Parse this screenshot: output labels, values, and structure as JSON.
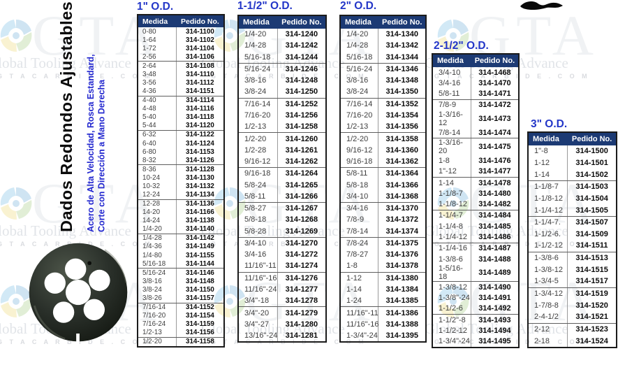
{
  "page": {
    "product_title": "Dados Redondos Ajustables",
    "subtitle_line1": "Acero de Alta Velocidad, Rosca Estandard,",
    "subtitle_line2": "Corte con Dirección a Mano Derecha"
  },
  "watermark": {
    "brand_acronym": "GTA",
    "brand_name": "Global Tooling Advance",
    "brand_url": "G T A C A R B I D E . C O M"
  },
  "colors": {
    "title_blue": "#2336c8",
    "header_navy": "#1c3a74",
    "subtitle_blue": "#2328cf"
  },
  "columns": {
    "size": "Medida",
    "order": "Pedido No."
  },
  "tables": [
    {
      "title": "1\" O.D.",
      "group_size": 4,
      "rows": [
        [
          "0-80",
          "314-1100"
        ],
        [
          "1-64",
          "314-1102"
        ],
        [
          "1-72",
          "314-1104"
        ],
        [
          "2-56",
          "314-1106"
        ],
        [
          "2-64",
          "314-1108"
        ],
        [
          "3-48",
          "314-1110"
        ],
        [
          "3-56",
          "314-1112"
        ],
        [
          "4-36",
          "314-1151"
        ],
        [
          "4-40",
          "314-1114"
        ],
        [
          "4-48",
          "314-1116"
        ],
        [
          "5-40",
          "314-1118"
        ],
        [
          "5-44",
          "314-1120"
        ],
        [
          "6-32",
          "314-1122"
        ],
        [
          "6-40",
          "314-1124"
        ],
        [
          "6-80",
          "314-1153"
        ],
        [
          "8-32",
          "314-1126"
        ],
        [
          "8-36",
          "314-1128"
        ],
        [
          "10-24",
          "314-1130"
        ],
        [
          "10-32",
          "314-1132"
        ],
        [
          "12-24",
          "314-1134"
        ],
        [
          "12-28",
          "314-1136"
        ],
        [
          "14-20",
          "314-1166"
        ],
        [
          "14-24",
          "314-1138"
        ],
        [
          "1/4-20",
          "314-1140"
        ],
        [
          "1/4-28",
          "314-1142"
        ],
        [
          "1/4-36",
          "314-1149"
        ],
        [
          "1/4-80",
          "314-1155"
        ],
        [
          "5/16-18",
          "314-1144"
        ],
        [
          "5/16-24",
          "314-1146"
        ],
        [
          "3/8-16",
          "314-1148"
        ],
        [
          "3/8-24",
          "314-1150"
        ],
        [
          "3/8-26",
          "314-1157"
        ],
        [
          "7/16-14",
          "314-1152"
        ],
        [
          "7/16-20",
          "314-1154"
        ],
        [
          "7/16-24",
          "314-1159"
        ],
        [
          "1/2-13",
          "314-1156"
        ],
        [
          "1/2-20",
          "314-1158"
        ]
      ]
    },
    {
      "title": "1-1/2\" O.D.",
      "group_size": 3,
      "rows": [
        [
          "1/4-20",
          "314-1240"
        ],
        [
          "1/4-28",
          "314-1242"
        ],
        [
          "5/16-18",
          "314-1244"
        ],
        [
          "5/16-24",
          "314-1246"
        ],
        [
          "3/8-16",
          "314-1248"
        ],
        [
          "3/8-24",
          "314-1250"
        ],
        [
          "7/16-14",
          "314-1252"
        ],
        [
          "7/16-20",
          "314-1256"
        ],
        [
          "1/2-13",
          "314-1258"
        ],
        [
          "1/2-20",
          "314-1260"
        ],
        [
          "1/2-28",
          "314-1261"
        ],
        [
          "9/16-12",
          "314-1262"
        ],
        [
          "9/16-18",
          "314-1264"
        ],
        [
          "5/8-24",
          "314-1265"
        ],
        [
          "5/8-11",
          "314-1266"
        ],
        [
          "5/8-27",
          "314-1267"
        ],
        [
          "5/8-18",
          "314-1268"
        ],
        [
          "5/8-28",
          "314-1269"
        ],
        [
          "3/4-10",
          "314-1270"
        ],
        [
          "3/4-16",
          "314-1272"
        ],
        [
          "11/16\"-11",
          "314-1274"
        ],
        [
          "11/16\"-16",
          "314-1276"
        ],
        [
          "11/16\"-24",
          "314-1277"
        ],
        [
          "3/4\"-18",
          "314-1278"
        ],
        [
          "3/4\"-20",
          "314-1279"
        ],
        [
          "3/4\"-27",
          "314-1280"
        ],
        [
          "13/16\"-24",
          "314-1281"
        ]
      ]
    },
    {
      "title": "2\" O.D.",
      "group_size": 3,
      "rows": [
        [
          "1/4-20",
          "314-1340"
        ],
        [
          "1/4-28",
          "314-1342"
        ],
        [
          "5/16-18",
          "314-1344"
        ],
        [
          "5/16-24",
          "314-1346"
        ],
        [
          "3/8-16",
          "314-1348"
        ],
        [
          "3/8-24",
          "314-1350"
        ],
        [
          "7/16-14",
          "314-1352"
        ],
        [
          "7/16-20",
          "314-1354"
        ],
        [
          "1/2-13",
          "314-1356"
        ],
        [
          "1/2-20",
          "314-1358"
        ],
        [
          "9/16-12",
          "314-1360"
        ],
        [
          "9/16-18",
          "314-1362"
        ],
        [
          "5/8-11",
          "314-1364"
        ],
        [
          "5/8-18",
          "314-1366"
        ],
        [
          "3/4-10",
          "314-1368"
        ],
        [
          "3/4-16",
          "314-1370"
        ],
        [
          "7/8-9",
          "314-1372"
        ],
        [
          "7/8-14",
          "314-1374"
        ],
        [
          "7/8-24",
          "314-1375"
        ],
        [
          "7/8-27",
          "314-1376"
        ],
        [
          "1-8",
          "314-1378"
        ],
        [
          "1-12",
          "314-1380"
        ],
        [
          "1-14",
          "314-1384"
        ],
        [
          "1-24",
          "314-1385"
        ],
        [
          "11/16\"-11",
          "314-1386"
        ],
        [
          "11/16\"-16",
          "314-1388"
        ],
        [
          "1-3/4\"-24",
          "314-1395"
        ]
      ]
    },
    {
      "title": "2-1/2\" O.D.",
      "group_size": 3,
      "rows": [
        [
          "3/4-10",
          "314-1468"
        ],
        [
          "3/4-16",
          "314-1470"
        ],
        [
          "5/8-11",
          "314-1471"
        ],
        [
          "7/8-9",
          "314-1472"
        ],
        [
          "1-3/16-12",
          "314-1473"
        ],
        [
          "7/8-14",
          "314-1474"
        ],
        [
          "1-3/16-20",
          "314-1475"
        ],
        [
          "1-8",
          "314-1476"
        ],
        [
          "1\"-12",
          "314-1477"
        ],
        [
          "1-14",
          "314-1478"
        ],
        [
          "1-1/8-7",
          "314-1480"
        ],
        [
          "1-1/8-12",
          "314-1482"
        ],
        [
          "1-1/4-7",
          "314-1484"
        ],
        [
          "1-1/4-8",
          "314-1485"
        ],
        [
          "1-1/4-12",
          "314-1486"
        ],
        [
          "1-1/4-16",
          "314-1487"
        ],
        [
          "1-3/8-6",
          "314-1488"
        ],
        [
          "1-5/16-18",
          "314-1489"
        ],
        [
          "1-3/8-12",
          "314-1490"
        ],
        [
          "1-3/8\"-24",
          "314-1491"
        ],
        [
          "1-1/2-6",
          "314-1492"
        ],
        [
          "1-1/2\"-8",
          "314-1493"
        ],
        [
          "1-1/2-12",
          "314-1494"
        ],
        [
          "1-3/4\"-24",
          "314-1495"
        ]
      ]
    },
    {
      "title": "3\" O.D.",
      "group_size": 3,
      "rows": [
        [
          "1\"-8",
          "314-1500"
        ],
        [
          "1-12",
          "314-1501"
        ],
        [
          "1-14",
          "314-1502"
        ],
        [
          "1-1/8-7",
          "314-1503"
        ],
        [
          "1-1/8-12",
          "314-1504"
        ],
        [
          "1-1/4-12",
          "314-1505"
        ],
        [
          "1-1/4-7.",
          "314-1507"
        ],
        [
          "1-1/2-6.",
          "314-1509"
        ],
        [
          "1-1/2-12",
          "314-1511"
        ],
        [
          "1-3/8-6",
          "314-1513"
        ],
        [
          "1-3/8-12",
          "314-1515"
        ],
        [
          "1-3/4-5",
          "314-1517"
        ],
        [
          "1-3/4-12",
          "314-1519"
        ],
        [
          "1-7/8-8",
          "314-1520"
        ],
        [
          "2-4-1/2",
          "314-1521"
        ],
        [
          "2-12",
          "314-1523"
        ],
        [
          "2-18",
          "314-1524"
        ]
      ]
    }
  ]
}
